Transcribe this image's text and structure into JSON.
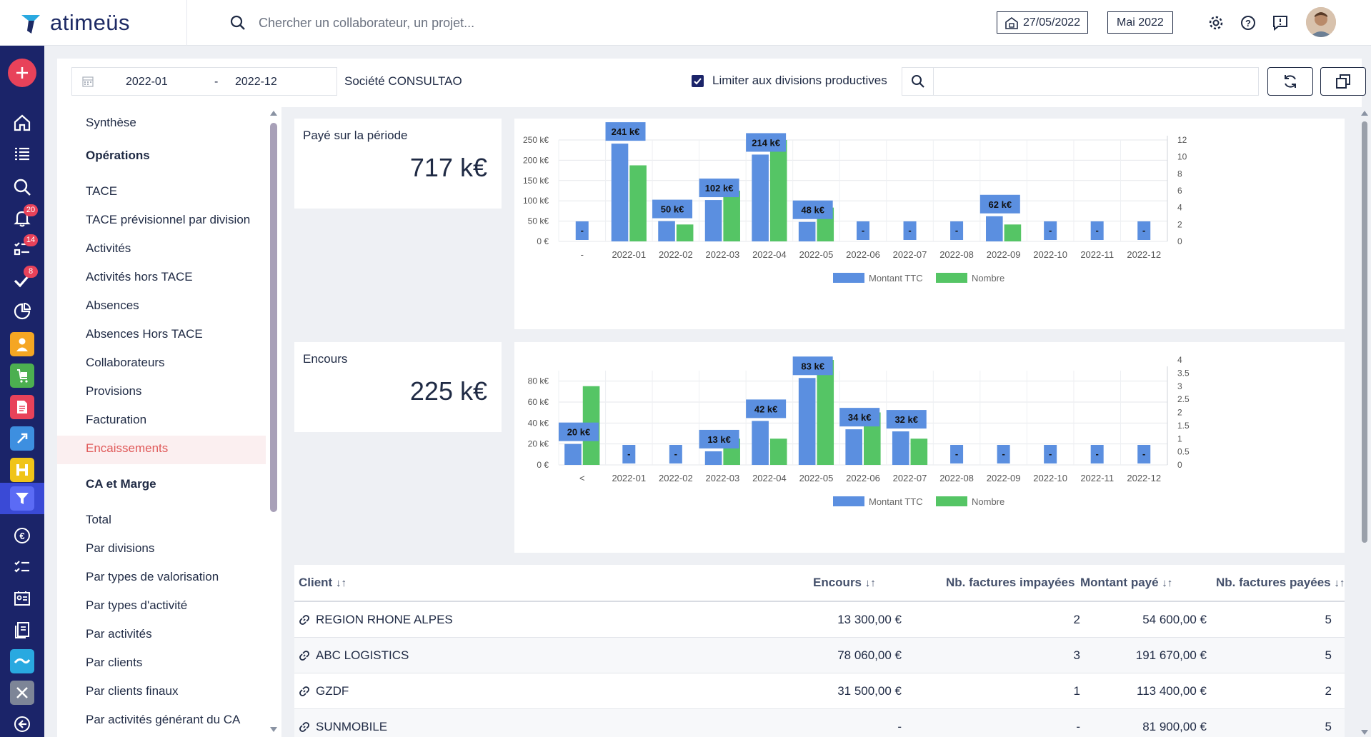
{
  "app": {
    "name": "atimeüs"
  },
  "search": {
    "placeholder": "Chercher un collaborateur, un projet..."
  },
  "top": {
    "date_label": "27/05/2022",
    "period_label": "Mai 2022"
  },
  "rail": {
    "badges": {
      "notifications": "20",
      "tasks": "14",
      "validations": "8"
    }
  },
  "filters": {
    "date_from": "2022-01",
    "date_sep": "-",
    "date_to": "2022-12",
    "company": "Société CONSULTAO",
    "limit_label": "Limiter aux divisions productives",
    "limit_checked": true,
    "search_value": ""
  },
  "nav": {
    "items": [
      {
        "label": "Synthèse",
        "type": "item"
      },
      {
        "label": "Opérations",
        "type": "head"
      },
      {
        "label": "TACE",
        "type": "item"
      },
      {
        "label": "TACE prévisionnel par division",
        "type": "item"
      },
      {
        "label": "Activités",
        "type": "item"
      },
      {
        "label": "Activités hors TACE",
        "type": "item"
      },
      {
        "label": "Absences",
        "type": "item"
      },
      {
        "label": "Absences Hors TACE",
        "type": "item"
      },
      {
        "label": "Collaborateurs",
        "type": "item"
      },
      {
        "label": "Provisions",
        "type": "item"
      },
      {
        "label": "Facturation",
        "type": "item"
      },
      {
        "label": "Encaissements",
        "type": "selected"
      },
      {
        "label": "CA et Marge",
        "type": "head"
      },
      {
        "label": "Total",
        "type": "item"
      },
      {
        "label": "Par divisions",
        "type": "item"
      },
      {
        "label": "Par types de valorisation",
        "type": "item"
      },
      {
        "label": "Par types d'activité",
        "type": "item"
      },
      {
        "label": "Par activités",
        "type": "item"
      },
      {
        "label": "Par clients",
        "type": "item"
      },
      {
        "label": "Par clients finaux",
        "type": "item"
      },
      {
        "label": "Par activités générant du CA",
        "type": "item"
      }
    ]
  },
  "kpis": {
    "paid": {
      "label": "Payé sur la période",
      "value": "717 k€"
    },
    "outstanding": {
      "label": "Encours",
      "value": "225 k€"
    }
  },
  "colors": {
    "blue": "#5b8fe0",
    "green": "#55c565",
    "label_bg": "#5b8fe0",
    "accent_red": "#e05a5a",
    "navy": "#1b2469"
  },
  "chart_data": [
    {
      "type": "bar",
      "title": "Payé sur la période",
      "categories": [
        "-",
        "2022-01",
        "2022-02",
        "2022-03",
        "2022-04",
        "2022-05",
        "2022-06",
        "2022-07",
        "2022-08",
        "2022-09",
        "2022-10",
        "2022-11",
        "2022-12"
      ],
      "series": [
        {
          "name": "Montant TTC",
          "axis": "left",
          "values": [
            0,
            241,
            50,
            102,
            214,
            48,
            0,
            0,
            0,
            62,
            0,
            0,
            0
          ]
        },
        {
          "name": "Nombre",
          "axis": "right",
          "values": [
            0,
            9,
            2,
            6,
            12,
            4,
            0,
            0,
            0,
            2,
            0,
            0,
            0
          ]
        }
      ],
      "data_labels": [
        "-",
        "241 k€",
        "50 k€",
        "102 k€",
        "214 k€",
        "48 k€",
        "-",
        "-",
        "-",
        "62 k€",
        "-",
        "-",
        "-"
      ],
      "y_left": {
        "ticks": [
          "0 €",
          "50 k€",
          "100 k€",
          "150 k€",
          "200 k€",
          "250 k€"
        ],
        "max": 250
      },
      "y_right": {
        "ticks": [
          "0",
          "2",
          "4",
          "6",
          "8",
          "10",
          "12"
        ],
        "max": 12
      },
      "legend": [
        "Montant TTC",
        "Nombre"
      ],
      "legend_position": "bottom"
    },
    {
      "type": "bar",
      "title": "Encours",
      "categories": [
        "<",
        "2022-01",
        "2022-02",
        "2022-03",
        "2022-04",
        "2022-05",
        "2022-06",
        "2022-07",
        "2022-08",
        "2022-09",
        "2022-10",
        "2022-11",
        "2022-12"
      ],
      "series": [
        {
          "name": "Montant TTC",
          "axis": "left",
          "values": [
            20,
            0,
            0,
            13,
            42,
            83,
            34,
            32,
            0,
            0,
            0,
            0,
            0
          ]
        },
        {
          "name": "Nombre",
          "axis": "right",
          "values": [
            3,
            0,
            0,
            1,
            1,
            4,
            2,
            1,
            0,
            0,
            0,
            0,
            0
          ]
        }
      ],
      "data_labels": [
        "20 k€",
        "-",
        "-",
        "13 k€",
        "42 k€",
        "83 k€",
        "34 k€",
        "32 k€",
        "-",
        "-",
        "-",
        "-",
        "-"
      ],
      "y_left": {
        "ticks": [
          "0 €",
          "20 k€",
          "40 k€",
          "60 k€",
          "80 k€"
        ],
        "max": 90
      },
      "y_right": {
        "ticks": [
          "0",
          "0.5",
          "1",
          "1.5",
          "2",
          "2.5",
          "3",
          "3.5",
          "4"
        ],
        "max": 4
      },
      "legend": [
        "Montant TTC",
        "Nombre"
      ],
      "legend_position": "bottom"
    }
  ],
  "table": {
    "headers": [
      "Client",
      "Encours",
      "Nb. factures impayées",
      "Montant payé",
      "Nb. factures payées"
    ],
    "rows": [
      {
        "client": "REGION RHONE ALPES",
        "encours": "13 300,00 €",
        "unpaid": "2",
        "paid": "54 600,00 €",
        "paid_count": "5"
      },
      {
        "client": "ABC LOGISTICS",
        "encours": "78 060,00 €",
        "unpaid": "3",
        "paid": "191 670,00 €",
        "paid_count": "5"
      },
      {
        "client": "GZDF",
        "encours": "31 500,00 €",
        "unpaid": "1",
        "paid": "113 400,00 €",
        "paid_count": "2"
      },
      {
        "client": "SUNMOBILE",
        "encours": "-",
        "unpaid": "-",
        "paid": "81 900,00 €",
        "paid_count": "5"
      }
    ]
  }
}
